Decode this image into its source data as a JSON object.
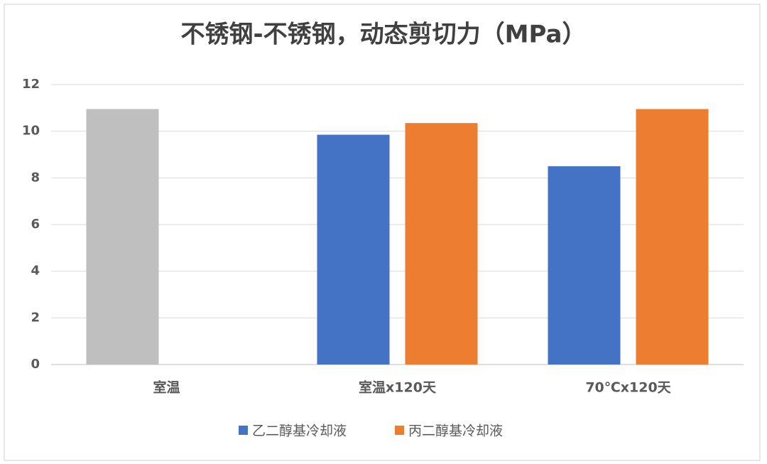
{
  "chart_data": {
    "type": "bar",
    "title": "不锈钢-不锈钢，动态剪切力（MPa）",
    "categories": [
      "室温",
      "室温x120天",
      "70℃x120天"
    ],
    "series": [
      {
        "name": "乙二醇基冷却液",
        "color": "#4472c4",
        "point_colors": [
          "#bfbfbf",
          "#4472c4",
          "#4472c4"
        ],
        "values": [
          10.95,
          9.85,
          8.5
        ]
      },
      {
        "name": "丙二醇基冷却液",
        "color": "#ed7d31",
        "values": [
          null,
          10.35,
          10.95
        ]
      }
    ],
    "ylim": [
      0,
      12
    ],
    "yticks": [
      0,
      2,
      4,
      6,
      8,
      10,
      12
    ],
    "grid": true,
    "legend": "bottom"
  }
}
